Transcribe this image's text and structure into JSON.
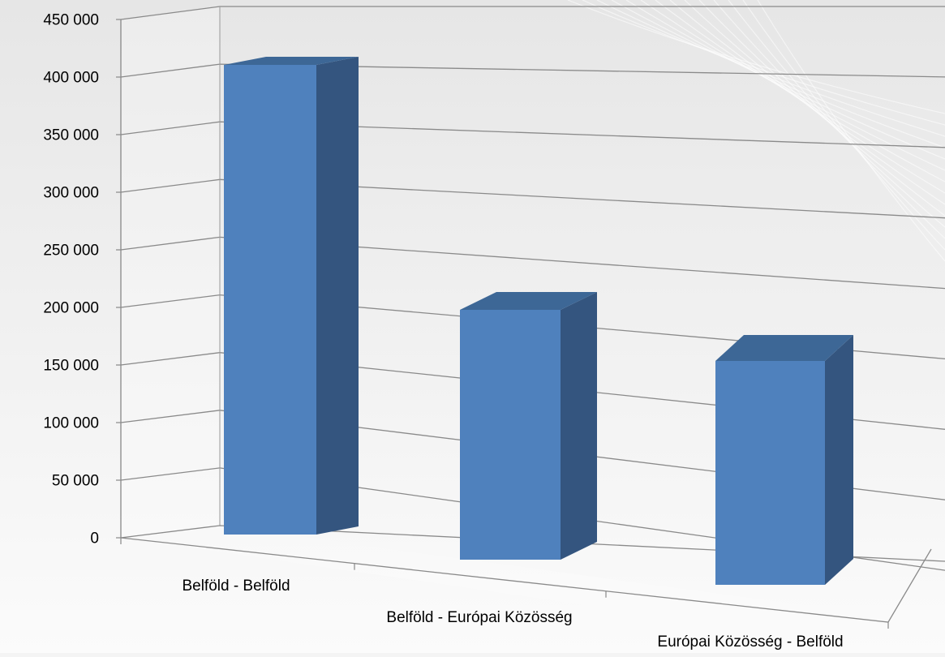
{
  "chart_data": {
    "type": "bar",
    "categories": [
      "Belföld - Belföld",
      "Belföld - Európai Közösség",
      "Európai Közösség - Belföld"
    ],
    "values": [
      407000,
      217000,
      182000
    ],
    "ylim": [
      0,
      450000
    ],
    "yticks": [
      0,
      50000,
      100000,
      150000,
      200000,
      250000,
      300000,
      350000,
      400000,
      450000
    ],
    "ytick_labels": [
      "0",
      "50 000",
      "100 000",
      "150 000",
      "200 000",
      "250 000",
      "300 000",
      "350 000",
      "400 000",
      "450 000"
    ],
    "title": "",
    "xlabel": "",
    "ylabel": "",
    "grid": true,
    "legend": "none",
    "three_d": true,
    "colors": {
      "bar_front": "#4f81bd",
      "bar_top": "#3d6796",
      "bar_side": "#34557f",
      "gridline": "#8a8a8a",
      "background": "#f4f4f4",
      "text": "#000000"
    }
  }
}
